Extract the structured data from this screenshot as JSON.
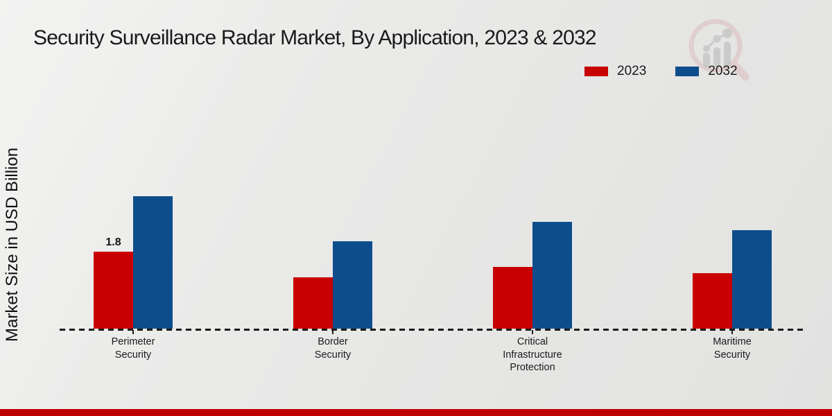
{
  "title": "Security Surveillance Radar Market, By Application, 2023 & 2032",
  "y_axis_label": "Market Size in USD Billion",
  "legend": {
    "items": [
      {
        "label": "2023",
        "color": "#c80001"
      },
      {
        "label": "2032",
        "color": "#0e4d8b"
      }
    ]
  },
  "colors": {
    "series_2023": "#c80001",
    "series_2032": "#0e4d8b",
    "bottom_strip": "#c00000",
    "text": "#1a1a1a",
    "background": "#e8e8e7"
  },
  "watermark_icon": "magnifier-bar-chart-logo-watermark",
  "chart_data": {
    "type": "bar",
    "title": "Security Surveillance Radar Market, By Application, 2023 & 2032",
    "xlabel": "",
    "ylabel": "Market Size in USD Billion",
    "categories": [
      "Perimeter Security",
      "Border Security",
      "Critical Infrastructure Protection",
      "Maritime Security"
    ],
    "series": [
      {
        "name": "2023",
        "color": "#c80001",
        "values": [
          1.8,
          1.2,
          1.45,
          1.3
        ]
      },
      {
        "name": "2032",
        "color": "#0e4d8b",
        "values": [
          3.1,
          2.05,
          2.5,
          2.3
        ]
      }
    ],
    "annotations": [
      {
        "series_index": 0,
        "category_index": 0,
        "text": "1.8"
      }
    ],
    "ylim": [
      0,
      3.5
    ],
    "grid": false,
    "y_ticks_visible": false,
    "baseline_style": "dashed",
    "legend_position": "top-right"
  },
  "bottom_strip": ""
}
